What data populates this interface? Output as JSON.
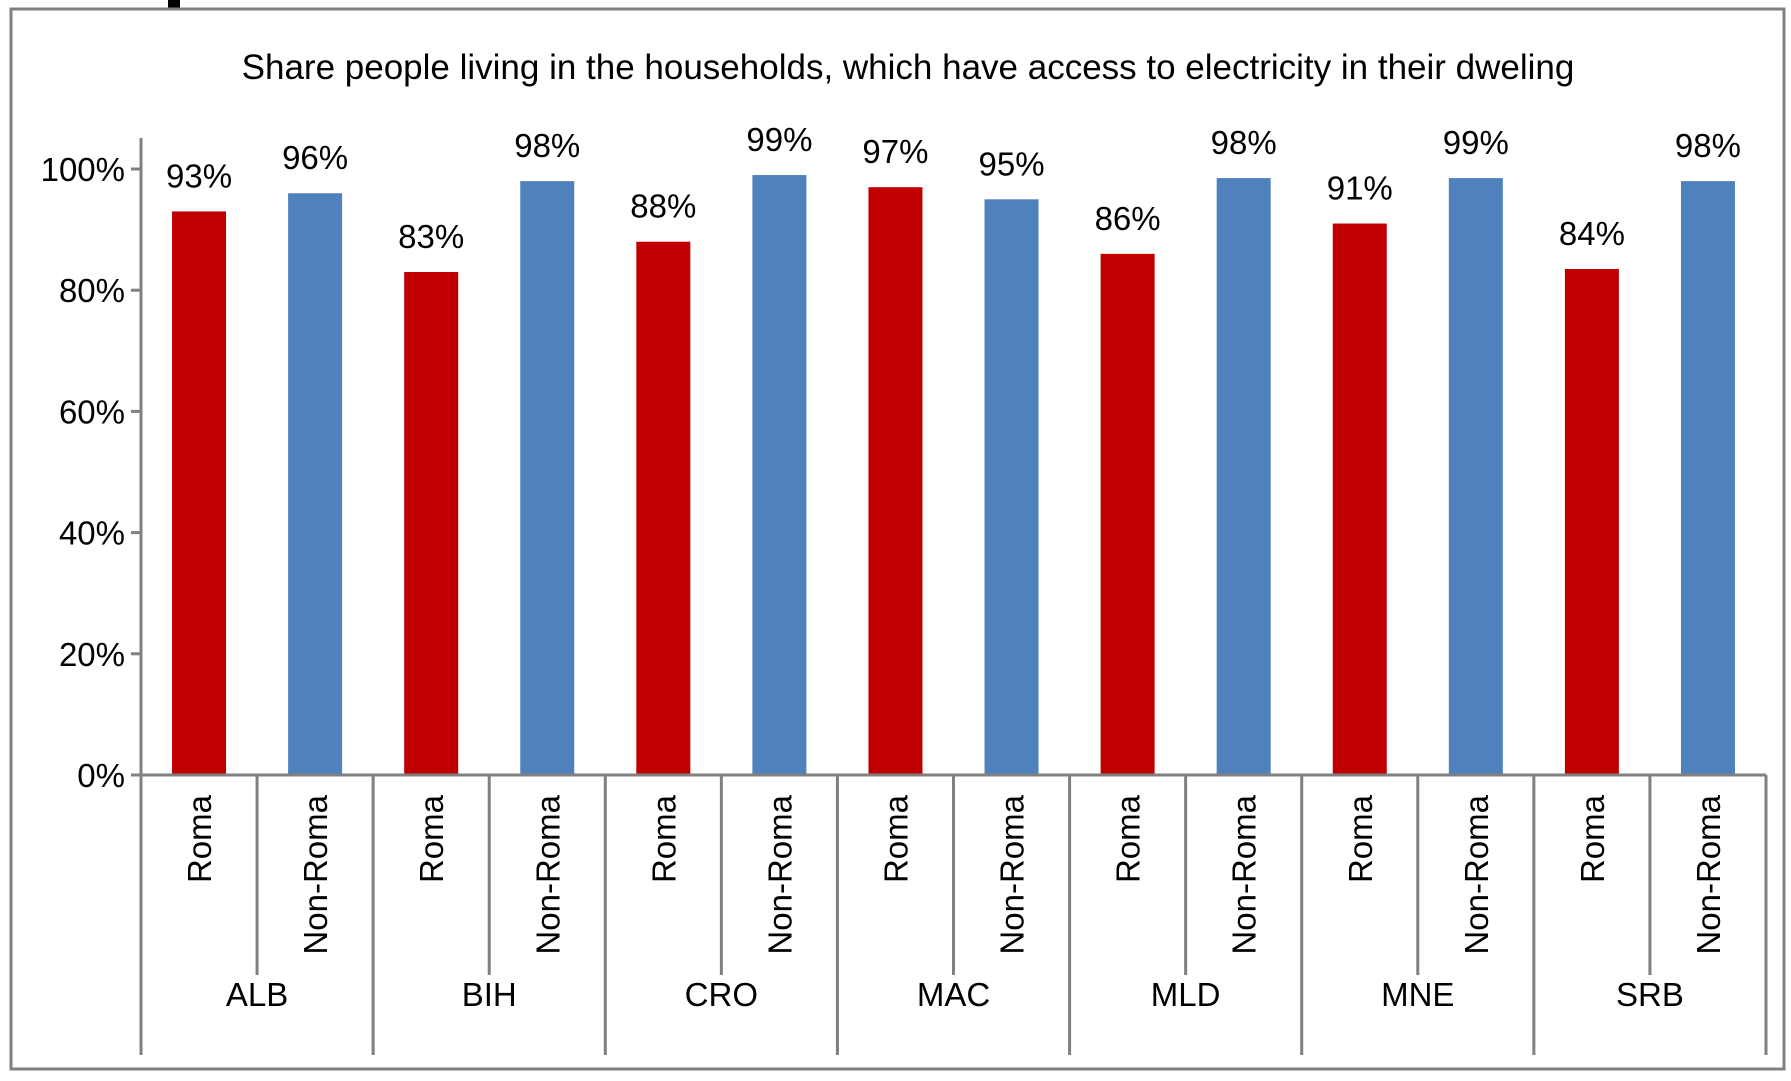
{
  "chart_data": {
    "type": "bar",
    "title": "Share people living in the households, which have access to electricity in their dweling",
    "xlabel": "",
    "ylabel": "",
    "ylim": [
      0,
      1
    ],
    "yticks": [
      "0%",
      "20%",
      "40%",
      "60%",
      "80%",
      "100%"
    ],
    "ytick_values": [
      0,
      0.2,
      0.4,
      0.6,
      0.8,
      1.0
    ],
    "grid": false,
    "legend": "none",
    "groups": [
      {
        "label": "ALB",
        "bars": [
          {
            "label": "Roma",
            "value": 0.93,
            "data_label": "93%"
          },
          {
            "label": "Non-Roma",
            "value": 0.96,
            "data_label": "96%"
          }
        ]
      },
      {
        "label": "BIH",
        "bars": [
          {
            "label": "Roma",
            "value": 0.83,
            "data_label": "83%"
          },
          {
            "label": "Non-Roma",
            "value": 0.98,
            "data_label": "98%"
          }
        ]
      },
      {
        "label": "CRO",
        "bars": [
          {
            "label": "Roma",
            "value": 0.88,
            "data_label": "88%"
          },
          {
            "label": "Non-Roma",
            "value": 0.99,
            "data_label": "99%"
          }
        ]
      },
      {
        "label": "MAC",
        "bars": [
          {
            "label": "Roma",
            "value": 0.97,
            "data_label": "97%"
          },
          {
            "label": "Non-Roma",
            "value": 0.95,
            "data_label": "95%"
          }
        ]
      },
      {
        "label": "MLD",
        "bars": [
          {
            "label": "Roma",
            "value": 0.86,
            "data_label": "86%"
          },
          {
            "label": "Non-Roma",
            "value": 0.985,
            "data_label": "98%"
          }
        ]
      },
      {
        "label": "MNE",
        "bars": [
          {
            "label": "Roma",
            "value": 0.91,
            "data_label": "91%"
          },
          {
            "label": "Non-Roma",
            "value": 0.985,
            "data_label": "99%"
          }
        ]
      },
      {
        "label": "SRB",
        "bars": [
          {
            "label": "Roma",
            "value": 0.835,
            "data_label": "84%"
          },
          {
            "label": "Non-Roma",
            "value": 0.98,
            "data_label": "98%"
          }
        ]
      }
    ],
    "colors": {
      "Roma": "#C00000",
      "Non-Roma": "#4F81BD"
    }
  }
}
